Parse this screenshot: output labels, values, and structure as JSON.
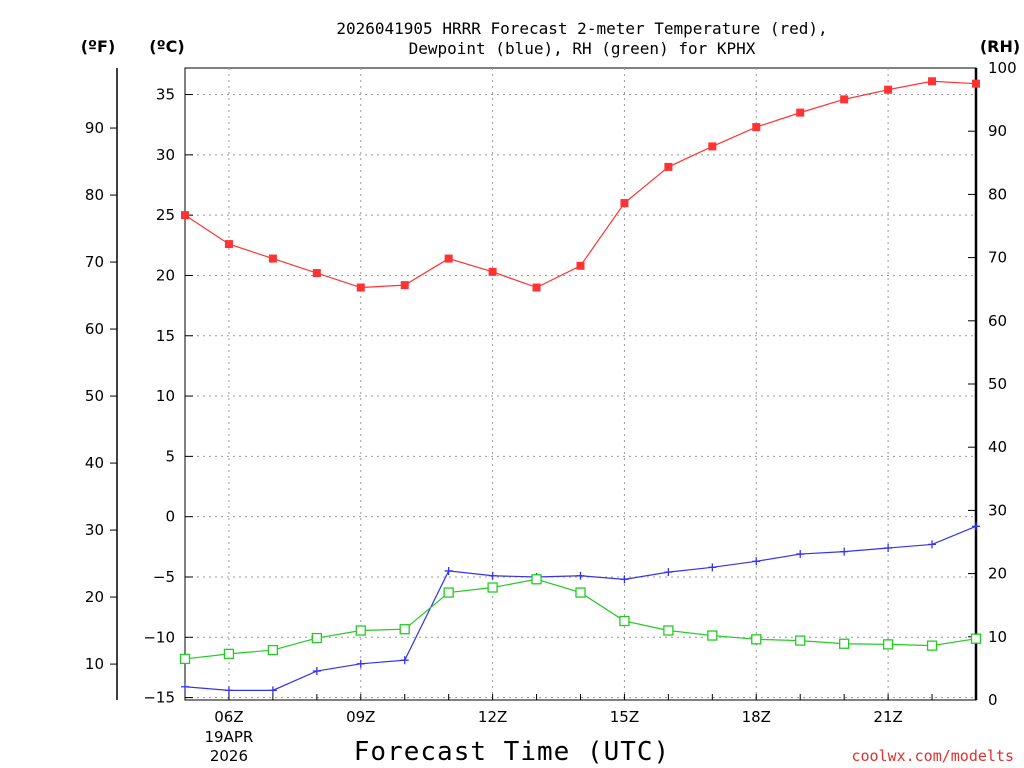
{
  "chart_data": {
    "type": "line",
    "title_line1": "2026041905 HRRR Forecast 2-meter Temperature (red),",
    "title_line2": "Dewpoint (blue), RH (green) for KPHX",
    "xlabel": "Forecast Time (UTC)",
    "credit": "coolwx.com/modelts",
    "units": {
      "fahrenheit": "(ºF)",
      "celsius": "(ºC)",
      "rh": "(RH)"
    },
    "x": [
      5,
      6,
      7,
      8,
      9,
      10,
      11,
      12,
      13,
      14,
      15,
      16,
      17,
      18,
      19,
      20,
      21,
      22,
      23
    ],
    "x_ticks": [
      {
        "hour": 6,
        "label": "06Z",
        "date": "19APR",
        "year": "2026"
      },
      {
        "hour": 9,
        "label": "09Z"
      },
      {
        "hour": 12,
        "label": "12Z"
      },
      {
        "hour": 15,
        "label": "15Z"
      },
      {
        "hour": 18,
        "label": "18Z"
      },
      {
        "hour": 21,
        "label": "21Z"
      }
    ],
    "xlim": [
      5,
      23
    ],
    "celsius_axis": {
      "ylim": [
        -15.2,
        37.2
      ],
      "ticks": [
        -15,
        -10,
        -5,
        0,
        5,
        10,
        15,
        20,
        25,
        30,
        35
      ]
    },
    "fahrenheit_axis": {
      "ticks": [
        10,
        20,
        30,
        40,
        50,
        60,
        70,
        80,
        90
      ]
    },
    "rh_axis": {
      "ylim": [
        0,
        100
      ],
      "ticks": [
        0,
        10,
        20,
        30,
        40,
        50,
        60,
        70,
        80,
        90,
        100
      ]
    },
    "series": [
      {
        "name": "Temperature",
        "axis": "celsius",
        "color": "#ff3333",
        "marker": "filled-square",
        "values": [
          25.0,
          22.6,
          21.4,
          20.2,
          19.0,
          19.2,
          21.4,
          20.3,
          19.0,
          20.8,
          26.0,
          29.0,
          30.7,
          32.3,
          33.5,
          34.6,
          35.4,
          36.1,
          35.9
        ]
      },
      {
        "name": "Dewpoint",
        "axis": "celsius",
        "color": "#3333ee",
        "marker": "plus",
        "values": [
          -14.1,
          -14.4,
          -14.4,
          -12.8,
          -12.2,
          -11.9,
          -4.5,
          -4.9,
          -5.0,
          -4.9,
          -5.2,
          -4.6,
          -4.2,
          -3.7,
          -3.1,
          -2.9,
          -2.6,
          -2.3,
          -0.8
        ]
      },
      {
        "name": "RH",
        "axis": "rh",
        "color": "#22cc22",
        "marker": "open-square",
        "values": [
          6.5,
          7.3,
          7.9,
          9.8,
          11.0,
          11.2,
          17.0,
          17.8,
          19.1,
          17.0,
          12.5,
          11.0,
          10.2,
          9.6,
          9.4,
          8.9,
          8.8,
          8.6,
          9.7
        ]
      }
    ]
  }
}
